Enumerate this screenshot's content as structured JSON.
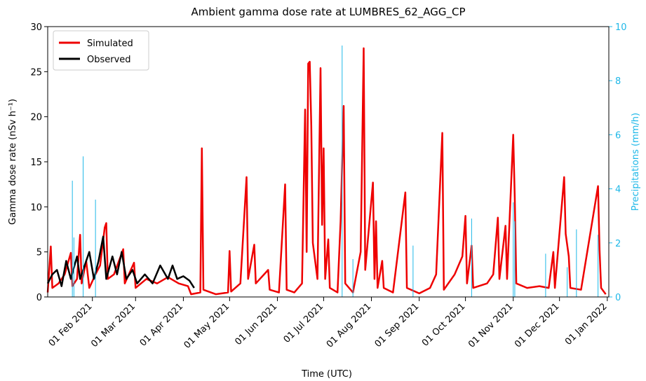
{
  "chart_data": {
    "type": "line",
    "title": "Ambient gamma dose rate at LUMBRES_62_AGG_CP",
    "x_label": "Time (UTC)",
    "y_label": "Gamma dose rate (nSv h⁻¹)",
    "y2_label": "Precipitations (mm/h)",
    "y2_color": "#1fb8e8",
    "legend": "upper left",
    "xlim": [
      "2021-01-03",
      "2022-01-02"
    ],
    "xticks": [
      {
        "value": "2021-02-01",
        "label": "01 Feb 2021"
      },
      {
        "value": "2021-03-01",
        "label": "01 Mar 2021"
      },
      {
        "value": "2021-04-01",
        "label": "01 Apr 2021"
      },
      {
        "value": "2021-05-01",
        "label": "01 May 2021"
      },
      {
        "value": "2021-06-01",
        "label": "01 Jun 2021"
      },
      {
        "value": "2021-07-01",
        "label": "01 Jul 2021"
      },
      {
        "value": "2021-08-01",
        "label": "01 Aug 2021"
      },
      {
        "value": "2021-09-01",
        "label": "01 Sep 2021"
      },
      {
        "value": "2021-10-01",
        "label": "01 Oct 2021"
      },
      {
        "value": "2021-11-01",
        "label": "01 Nov 2021"
      },
      {
        "value": "2021-12-01",
        "label": "01 Dec 2021"
      },
      {
        "value": "2022-01-01",
        "label": "01 Jan 2022"
      }
    ],
    "ylim": [
      0,
      30
    ],
    "yticks": [
      0,
      5,
      10,
      15,
      20,
      25,
      30
    ],
    "y2lim": [
      0,
      10
    ],
    "y2ticks": [
      0,
      2,
      4,
      6,
      8,
      10
    ],
    "series": [
      {
        "name": "Simulated",
        "color": "#ee0000",
        "x": [
          "2021-01-03",
          "2021-01-05",
          "2021-01-06",
          "2021-01-10",
          "2021-01-14",
          "2021-01-18",
          "2021-01-19",
          "2021-01-22",
          "2021-01-24",
          "2021-01-25",
          "2021-01-28",
          "2021-01-30",
          "2021-02-03",
          "2021-02-06",
          "2021-02-09",
          "2021-02-10",
          "2021-02-11",
          "2021-02-15",
          "2021-02-21",
          "2021-02-22",
          "2021-02-28",
          "2021-03-01",
          "2021-03-08",
          "2021-03-15",
          "2021-03-22",
          "2021-03-29",
          "2021-04-04",
          "2021-04-06",
          "2021-04-12",
          "2021-04-13",
          "2021-04-14",
          "2021-04-22",
          "2021-04-30",
          "2021-05-01",
          "2021-05-02",
          "2021-05-08",
          "2021-05-12",
          "2021-05-13",
          "2021-05-17",
          "2021-05-18",
          "2021-05-26",
          "2021-05-27",
          "2021-06-02",
          "2021-06-06",
          "2021-06-07",
          "2021-06-12",
          "2021-06-17",
          "2021-06-19",
          "2021-06-20",
          "2021-06-21",
          "2021-06-22",
          "2021-06-23",
          "2021-06-24",
          "2021-06-27",
          "2021-06-29",
          "2021-06-30",
          "2021-07-01",
          "2021-07-02",
          "2021-07-04",
          "2021-07-05",
          "2021-07-10",
          "2021-07-12",
          "2021-07-14",
          "2021-07-15",
          "2021-07-20",
          "2021-07-25",
          "2021-07-27",
          "2021-07-28",
          "2021-08-02",
          "2021-08-03",
          "2021-08-04",
          "2021-08-05",
          "2021-08-08",
          "2021-08-09",
          "2021-08-15",
          "2021-08-23",
          "2021-08-24",
          "2021-09-01",
          "2021-09-08",
          "2021-09-12",
          "2021-09-16",
          "2021-09-17",
          "2021-09-24",
          "2021-09-29",
          "2021-10-01",
          "2021-10-02",
          "2021-10-05",
          "2021-10-06",
          "2021-10-15",
          "2021-10-19",
          "2021-10-22",
          "2021-10-23",
          "2021-10-27",
          "2021-10-28",
          "2021-11-01",
          "2021-11-02",
          "2021-11-03",
          "2021-11-10",
          "2021-11-18",
          "2021-11-24",
          "2021-11-27",
          "2021-11-28",
          "2021-12-04",
          "2021-12-05",
          "2021-12-07",
          "2021-12-08",
          "2021-12-15",
          "2021-12-26",
          "2021-12-27",
          "2021-12-28",
          "2021-12-31"
        ],
        "values": [
          0.5,
          5.6,
          1.0,
          1.5,
          2.5,
          4.9,
          1.2,
          2,
          6.9,
          1.5,
          4,
          1,
          2.5,
          3.5,
          7.7,
          8.2,
          2,
          2.5,
          5.3,
          1.5,
          3.8,
          1,
          2,
          1.5,
          2.2,
          1.5,
          1.2,
          0.3,
          0.5,
          16.5,
          0.8,
          0.3,
          0.5,
          5.1,
          0.6,
          1.5,
          13.3,
          2,
          5.8,
          1.5,
          3,
          0.8,
          0.5,
          12.5,
          0.8,
          0.5,
          1.5,
          20.8,
          5,
          25.9,
          26.1,
          19,
          6,
          2,
          25.4,
          8,
          16.5,
          2,
          6.4,
          1,
          0.5,
          8.4,
          21.2,
          1.5,
          0.5,
          5,
          27.6,
          3,
          12.7,
          2,
          8.4,
          1,
          4,
          1,
          0.5,
          11.6,
          1,
          0.4,
          1,
          2.5,
          18.2,
          0.8,
          2.5,
          4.5,
          9,
          1.5,
          5.7,
          1,
          1.5,
          2.5,
          8.8,
          2,
          7.9,
          2,
          18,
          11,
          1.5,
          1,
          1.2,
          1,
          5,
          1,
          13.3,
          7,
          4.5,
          1,
          0.8,
          12.3,
          5.2,
          1,
          0.3
        ]
      },
      {
        "name": "Observed",
        "color": "#000000",
        "x": [
          "2021-01-03",
          "2021-01-06",
          "2021-01-09",
          "2021-01-12",
          "2021-01-15",
          "2021-01-18",
          "2021-01-22",
          "2021-01-24",
          "2021-01-27",
          "2021-01-30",
          "2021-02-02",
          "2021-02-05",
          "2021-02-08",
          "2021-02-10",
          "2021-02-14",
          "2021-02-17",
          "2021-02-20",
          "2021-02-23",
          "2021-02-27",
          "2021-03-02",
          "2021-03-07",
          "2021-03-12",
          "2021-03-17",
          "2021-03-22",
          "2021-03-25",
          "2021-03-28",
          "2021-04-01",
          "2021-04-05",
          "2021-04-08"
        ],
        "values": [
          1.5,
          2.5,
          3,
          1.2,
          4,
          2,
          4.5,
          2,
          3.5,
          5,
          2,
          4,
          6.7,
          2,
          4.5,
          2.5,
          5,
          2,
          3,
          1.5,
          2.5,
          1.5,
          3.5,
          2,
          3.5,
          2,
          2.3,
          1.8,
          1
        ]
      },
      {
        "type": "bar",
        "axis": "y2",
        "color": "#1fb8e8",
        "x": [
          "2021-01-19",
          "2021-01-20",
          "2021-01-26",
          "2021-02-03",
          "2021-07-13",
          "2021-07-20",
          "2021-08-28",
          "2021-10-05",
          "2021-11-01",
          "2021-11-02",
          "2021-11-22",
          "2021-12-06",
          "2021-12-12",
          "2021-12-26"
        ],
        "values": [
          4.3,
          2.2,
          5.2,
          3.6,
          9.3,
          1.4,
          1.9,
          2.9,
          3.5,
          2.8,
          1.6,
          1.1,
          2.5,
          2.3
        ]
      }
    ]
  }
}
